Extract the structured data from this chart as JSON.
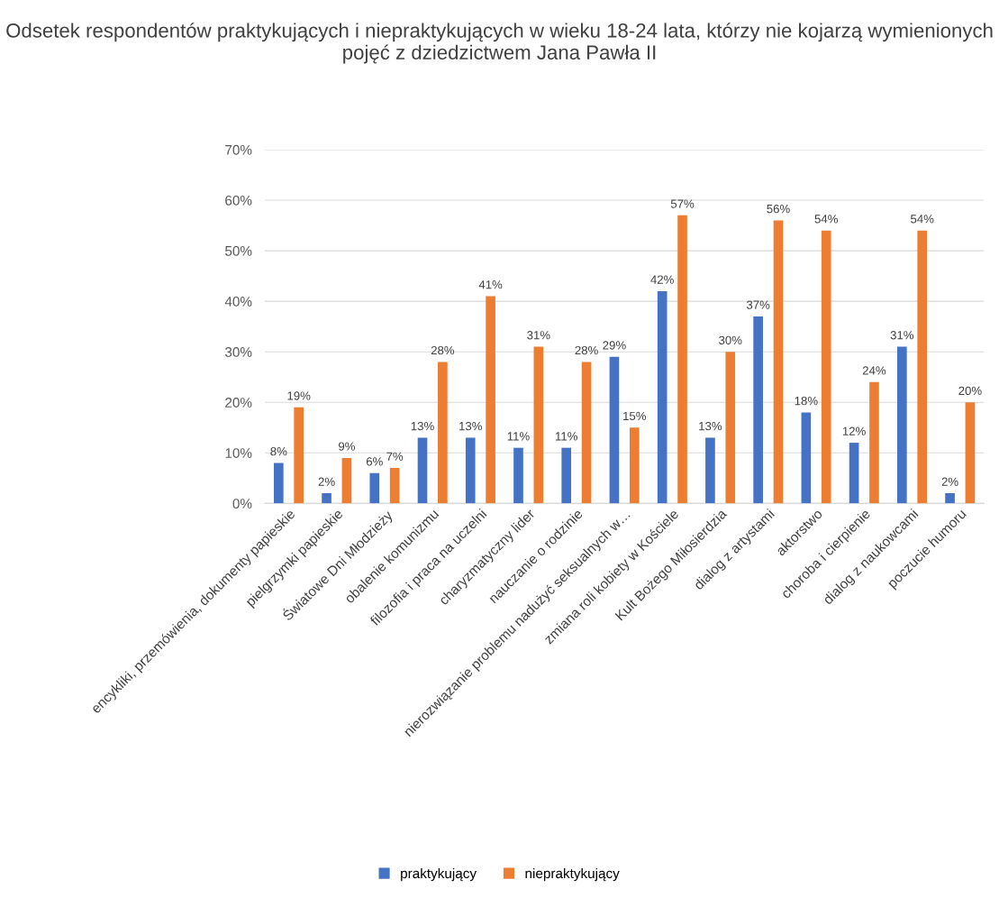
{
  "chart_data": {
    "type": "bar",
    "title": "Odsetek respondentów praktykujących i niepraktykujących w wieku 18-24 lata, którzy nie kojarzą wymienionych pojęć z dziedzictwem Jana Pawła II",
    "categories": [
      "encykliki, przemówienia, dokumenty papieskie",
      "pielgrzymki papieskie",
      "Światowe Dni Młodzieży",
      "obalenie komunizmu",
      "filozofia i praca na uczelni",
      "charyzmatyczny lider",
      "nauczanie o rodzinie",
      "nierozwiązanie problemu nadużyć seksualnych w…",
      "zmiana roli kobiety w Kościele",
      "Kult Bożego Miłosierdzia",
      "dialog z artystami",
      "aktorstwo",
      "choroba i cierpienie",
      "dialog z naukowcami",
      "poczucie humoru"
    ],
    "series": [
      {
        "name": "praktykujący",
        "color": "#4472c4",
        "values": [
          8,
          2,
          6,
          13,
          13,
          11,
          11,
          29,
          42,
          13,
          37,
          18,
          12,
          31,
          2
        ],
        "value_labels": [
          "8%",
          "2%",
          "6%",
          "13%",
          "13%",
          "11%",
          "11%",
          "29%",
          "42%",
          "13%",
          "37%",
          "18%",
          "12%",
          "31%",
          "2%"
        ]
      },
      {
        "name": "niepraktykujący",
        "color": "#ed7d31",
        "values": [
          19,
          9,
          7,
          28,
          41,
          31,
          28,
          15,
          57,
          30,
          56,
          54,
          24,
          54,
          20
        ],
        "value_labels": [
          "19%",
          "9%",
          "7%",
          "28%",
          "41%",
          "31%",
          "28%",
          "15%",
          "57%",
          "30%",
          "56%",
          "54%",
          "24%",
          "54%",
          "20%"
        ]
      }
    ],
    "ylim": [
      0,
      70
    ],
    "yticks": [
      {
        "value": 0,
        "label": "0%"
      },
      {
        "value": 10,
        "label": "10%"
      },
      {
        "value": 20,
        "label": "20%"
      },
      {
        "value": 30,
        "label": "30%"
      },
      {
        "value": 40,
        "label": "40%"
      },
      {
        "value": 50,
        "label": "50%"
      },
      {
        "value": 60,
        "label": "60%"
      },
      {
        "value": 70,
        "label": "70%"
      }
    ],
    "grid": "y",
    "legend": "bottom"
  }
}
